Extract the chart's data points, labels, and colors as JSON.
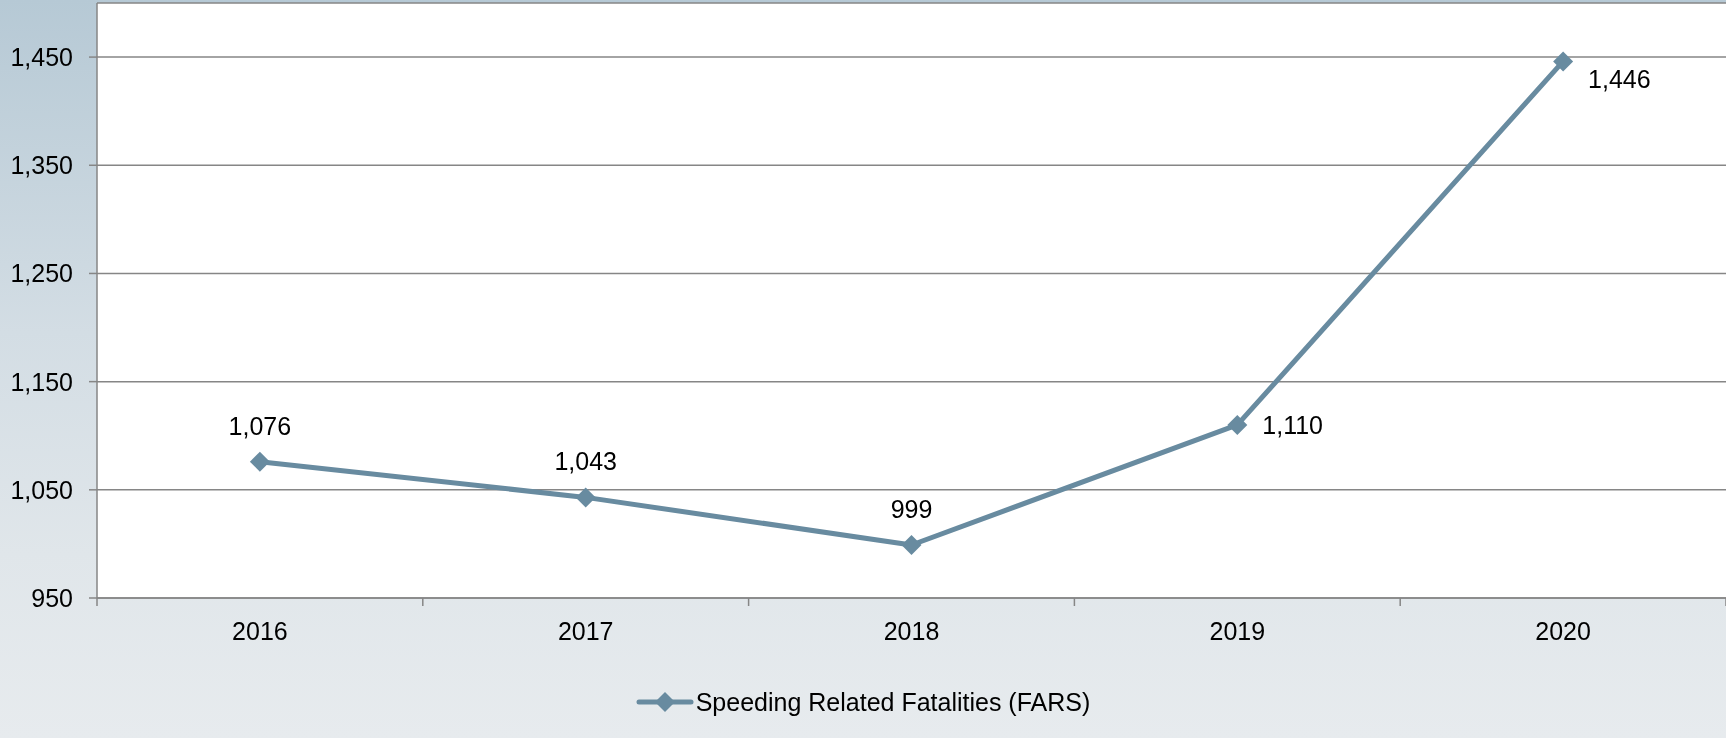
{
  "chart_data": {
    "type": "line",
    "categories": [
      "2016",
      "2017",
      "2018",
      "2019",
      "2020"
    ],
    "series": [
      {
        "name": "Speeding Related Fatalities (FARS)",
        "color": "#688ba0",
        "values": [
          1076,
          1043,
          999,
          1110,
          1446
        ],
        "value_labels": [
          "1,076",
          "1,043",
          "999",
          "1,110",
          "1,446"
        ]
      }
    ],
    "ylim": [
      950,
      1500
    ],
    "yticks": [
      950,
      {
        "value": 1050,
        "label": "1,050"
      },
      {
        "value": 1150,
        "label": "1,150"
      },
      {
        "value": 1250,
        "label": "1,250"
      },
      {
        "value": 1350,
        "label": "1,350"
      },
      {
        "value": 1450,
        "label": "1,450"
      }
    ],
    "grid": "y",
    "legend": "bottom",
    "marker": "diamond",
    "line_style": "solid"
  }
}
